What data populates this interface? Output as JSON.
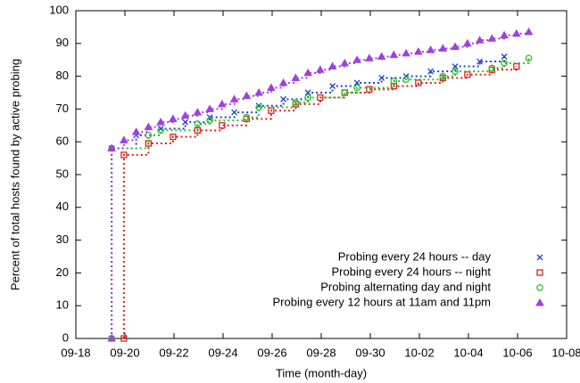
{
  "chart_data": {
    "type": "step",
    "x_label": "Time (month-day)",
    "y_label": "Percent of total hosts found by active probing",
    "xlim": [
      "09-18",
      "10-08"
    ],
    "xticks": [
      "09-18",
      "09-20",
      "09-22",
      "09-24",
      "09-26",
      "09-28",
      "09-30",
      "10-02",
      "10-04",
      "10-06",
      "10-08"
    ],
    "ylim": [
      0,
      100
    ],
    "yticks": [
      0,
      10,
      20,
      30,
      40,
      50,
      60,
      70,
      80,
      90,
      100
    ],
    "grid": false,
    "legend": "lower right",
    "series": [
      {
        "name": "Probing every 24 hours -- day",
        "color": "#1f3fd0",
        "marker": "cross",
        "x": [
          "09-19 11:00",
          "09-19 11:00",
          "09-20 11:00",
          "09-21 11:00",
          "09-22 11:00",
          "09-23 11:00",
          "09-24 11:00",
          "09-25 11:00",
          "09-26 11:00",
          "09-27 11:00",
          "09-28 11:00",
          "09-29 11:00",
          "09-30 11:00",
          "10-01 11:00",
          "10-02 11:00",
          "10-03 11:00",
          "10-04 11:00",
          "10-05 11:00"
        ],
        "values": [
          0,
          58,
          62,
          64,
          66,
          67.5,
          69,
          71,
          73,
          75,
          77,
          78,
          79.5,
          80,
          81.5,
          83,
          84.5,
          86
        ]
      },
      {
        "name": "Probing every 24 hours -- night",
        "color": "#e02020",
        "marker": "square",
        "x": [
          "09-19 23:00",
          "09-19 23:00",
          "09-20 23:00",
          "09-21 23:00",
          "09-22 23:00",
          "09-23 23:00",
          "09-24 23:00",
          "09-25 23:00",
          "09-26 23:00",
          "09-27 23:00",
          "09-28 23:00",
          "09-29 23:00",
          "09-30 23:00",
          "10-01 23:00",
          "10-02 23:00",
          "10-03 23:00",
          "10-04 23:00",
          "10-05 23:00"
        ],
        "values": [
          0,
          56,
          59.5,
          61.5,
          63.5,
          65,
          67,
          69.5,
          71.5,
          73.5,
          75,
          76,
          77,
          78,
          79.5,
          80.5,
          82,
          83
        ]
      },
      {
        "name": "Probing alternating day and night",
        "color": "#30c030",
        "marker": "circle",
        "x": [
          "09-19 11:00",
          "09-19 11:00",
          "09-20 23:00",
          "09-21 11:00",
          "09-22 23:00",
          "09-23 11:00",
          "09-24 23:00",
          "09-25 11:00",
          "09-26 23:00",
          "09-27 11:00",
          "09-28 23:00",
          "09-29 11:00",
          "09-30 23:00",
          "10-01 11:00",
          "10-02 23:00",
          "10-03 11:00",
          "10-04 23:00",
          "10-05 11:00",
          "10-06 11:00"
        ],
        "values": [
          0,
          58,
          62,
          63.5,
          65.5,
          66.5,
          67.5,
          70.5,
          72,
          73.5,
          75,
          76.5,
          78.5,
          79,
          80,
          81.5,
          82.5,
          84,
          85.5
        ]
      },
      {
        "name": "Probing every 12 hours at 11am and 11pm",
        "color": "#a040e0",
        "marker": "triangle",
        "x": [
          "09-19 11:00",
          "09-19 11:00",
          "09-19 23:00",
          "09-20 11:00",
          "09-20 23:00",
          "09-21 11:00",
          "09-21 23:00",
          "09-22 11:00",
          "09-22 23:00",
          "09-23 11:00",
          "09-23 23:00",
          "09-24 11:00",
          "09-24 23:00",
          "09-25 11:00",
          "09-25 23:00",
          "09-26 11:00",
          "09-26 23:00",
          "09-27 11:00",
          "09-27 23:00",
          "09-28 11:00",
          "09-28 23:00",
          "09-29 11:00",
          "09-29 23:00",
          "09-30 11:00",
          "09-30 23:00",
          "10-01 11:00",
          "10-01 23:00",
          "10-02 11:00",
          "10-02 23:00",
          "10-03 11:00",
          "10-03 23:00",
          "10-04 11:00",
          "10-04 23:00",
          "10-05 11:00",
          "10-05 23:00",
          "10-06 11:00"
        ],
        "values": [
          0,
          58,
          60.5,
          63,
          64.5,
          66,
          67,
          68,
          69,
          70,
          71.5,
          73,
          74,
          75,
          76.5,
          78,
          79.5,
          81,
          82,
          83,
          84,
          85,
          85.5,
          86,
          86.5,
          87,
          87.5,
          88,
          88.5,
          89,
          90,
          91,
          91.5,
          92.5,
          93,
          93.5
        ]
      }
    ]
  }
}
